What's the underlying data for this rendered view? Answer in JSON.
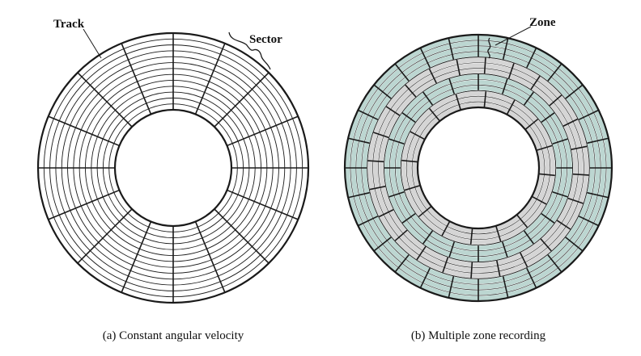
{
  "diagram": {
    "colors": {
      "ink": "#1a1a1a",
      "zone_teal": "#bcd6d1",
      "zone_gray": "#d5d5d5",
      "background": "#ffffff"
    },
    "left_disk": {
      "label_track": "Track",
      "label_sector": "Sector",
      "caption": "(a) Constant angular velocity",
      "tracks": 13,
      "sectors": 16
    },
    "right_disk": {
      "label_zone": "Zone",
      "caption": "(b) Multiple zone recording",
      "zones": [
        {
          "tracks": 4,
          "sectors": 28,
          "color": "teal"
        },
        {
          "tracks": 3,
          "sectors": 24,
          "color": "gray"
        },
        {
          "tracks": 3,
          "sectors": 20,
          "color": "teal"
        },
        {
          "tracks": 3,
          "sectors": 16,
          "color": "gray"
        }
      ]
    }
  }
}
